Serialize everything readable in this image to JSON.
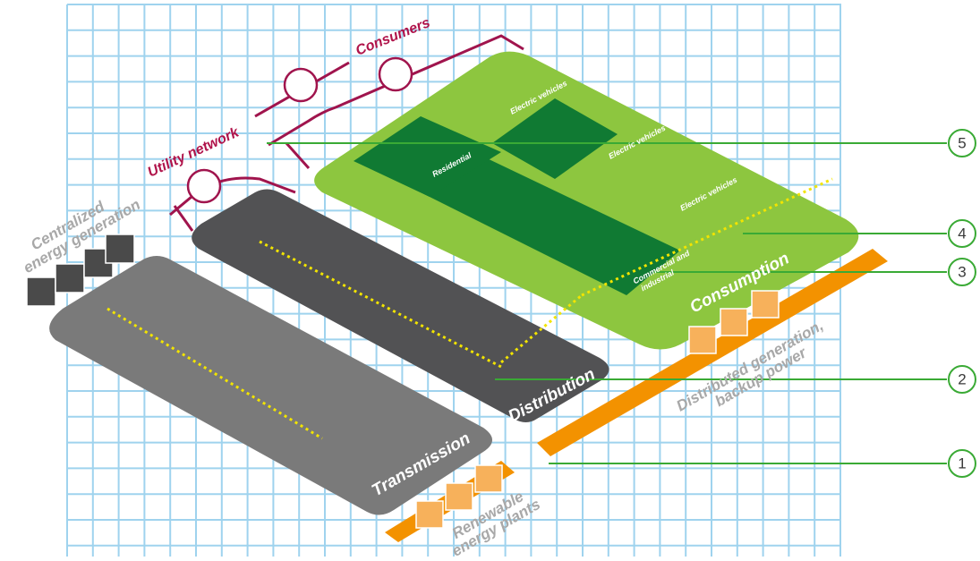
{
  "labels": {
    "consumers": "Consumers",
    "utility_network": "Utility network",
    "centralized": [
      "Centralized",
      "energy generation"
    ],
    "transmission": "Transmission",
    "distribution": "Distribution",
    "consumption": "Consumption",
    "residential": "Residential",
    "electric_vehicles": [
      "Electric vehicles",
      "Electric vehicles",
      "Electric vehicles"
    ],
    "commercial": [
      "Commercial and",
      "industrial"
    ],
    "distributed": [
      "Distributed generation,",
      "backup power"
    ],
    "renewable": [
      "Renewable",
      "energy plants"
    ]
  },
  "callouts": [
    "1",
    "2",
    "3",
    "4",
    "5"
  ]
}
